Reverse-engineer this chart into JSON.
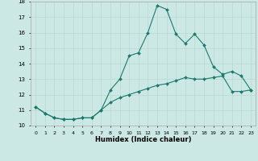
{
  "xlabel": "Humidex (Indice chaleur)",
  "x": [
    0,
    1,
    2,
    3,
    4,
    5,
    6,
    7,
    8,
    9,
    10,
    11,
    12,
    13,
    14,
    15,
    16,
    17,
    18,
    19,
    20,
    21,
    22,
    23
  ],
  "line1": [
    11.2,
    10.8,
    10.5,
    10.4,
    10.4,
    10.5,
    10.5,
    11.0,
    12.3,
    13.0,
    14.5,
    14.7,
    16.0,
    17.75,
    17.5,
    15.9,
    15.3,
    15.9,
    15.2,
    13.8,
    13.3,
    13.5,
    13.2,
    12.3
  ],
  "line2": [
    11.2,
    10.8,
    10.5,
    10.4,
    10.4,
    10.5,
    10.5,
    11.0,
    11.5,
    11.8,
    12.0,
    12.2,
    12.4,
    12.6,
    12.7,
    12.9,
    13.1,
    13.0,
    13.0,
    13.1,
    13.2,
    12.2,
    12.2,
    12.3
  ],
  "line_color": "#1a7a6e",
  "bg_color": "#cce8e4",
  "grid_color": "#b8d8d4",
  "ylim": [
    10,
    18
  ],
  "xlim": [
    -0.5,
    23.5
  ],
  "yticks": [
    10,
    11,
    12,
    13,
    14,
    15,
    16,
    17,
    18
  ],
  "xticks": [
    0,
    1,
    2,
    3,
    4,
    5,
    6,
    7,
    8,
    9,
    10,
    11,
    12,
    13,
    14,
    15,
    16,
    17,
    18,
    19,
    20,
    21,
    22,
    23
  ]
}
